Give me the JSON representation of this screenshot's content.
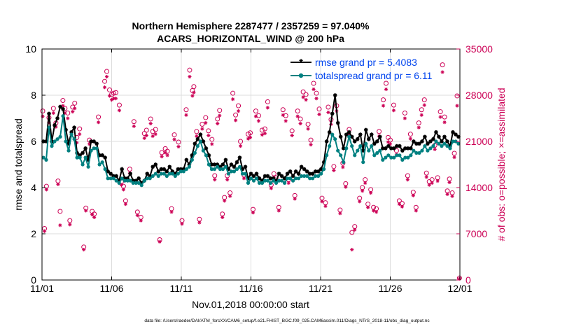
{
  "chart_data": {
    "type": "line",
    "title": "Northern Hemisphere 2287477 / 2357259 = 97.040%",
    "subtitle": "ACARS_HORIZONTAL_WIND @ 200 hPa",
    "xlabel": "Nov.01,2018 00:00:00 start",
    "ylabel_left": "rmse and totalspread",
    "ylabel_right": "# of obs: o=possible; ×=assimilated",
    "footer": "data file: /Users/raeder/DAI/ATM_forcXX/CAM6_setup/f.e21.FHIST_BGC.f09_025.CAM6assim.011/Diags_NTrS_2018-11/obs_diag_output.nc",
    "xlim": [
      0,
      30
    ],
    "ylim_left": [
      0,
      10
    ],
    "ylim_right": [
      0,
      35000
    ],
    "x_ticks": [
      0,
      5,
      10,
      15,
      20,
      25,
      30
    ],
    "x_tick_labels": [
      "11/01",
      "11/06",
      "11/11",
      "11/16",
      "11/21",
      "11/26",
      "12/01"
    ],
    "y_left_ticks": [
      0,
      2,
      4,
      6,
      8,
      10
    ],
    "y_left_tick_labels": [
      "0",
      "2",
      "4",
      "6",
      "8",
      "10"
    ],
    "y_right_ticks": [
      0,
      7000,
      14000,
      21000,
      28000,
      35000
    ],
    "y_right_tick_labels": [
      "0",
      "7000",
      "14000",
      "21000",
      "28000",
      "35000"
    ],
    "legend_position": "top-right",
    "colors": {
      "rmse": "#000000",
      "spread": "#008080",
      "obs": "#cc0055",
      "legend_text": "#0044ee"
    },
    "series": [
      {
        "name": "rmse grand pr = 5.4083",
        "values": [
          6.0,
          6.0,
          7.2,
          6.0,
          6.7,
          7.0,
          7.5,
          7.4,
          6.5,
          5.9,
          6.4,
          6.6,
          5.5,
          5.4,
          5.5,
          5.7,
          5.2,
          6.0,
          6.0,
          5.9,
          5.4,
          5.4,
          5.3,
          4.7,
          4.6,
          4.5,
          4.5,
          4.3,
          4.8,
          4.4,
          4.4,
          4.6,
          4.3,
          4.3,
          4.4,
          4.2,
          4.3,
          4.6,
          4.5,
          4.9,
          5.0,
          4.7,
          4.8,
          4.8,
          4.7,
          4.9,
          4.7,
          4.6,
          4.8,
          4.8,
          4.8,
          5.2,
          5.0,
          5.4,
          5.9,
          6.1,
          6.3,
          6.0,
          5.7,
          5.4,
          5.0,
          5.0,
          5.0,
          4.9,
          5.0,
          5.2,
          4.8,
          5.0,
          4.9,
          5.1,
          5.3,
          4.8,
          4.9,
          4.4,
          4.6,
          4.5,
          4.6,
          4.4,
          4.3,
          4.5,
          4.5,
          4.4,
          4.4,
          4.3,
          4.6,
          4.5,
          4.4,
          4.6,
          4.7,
          4.5,
          4.7,
          4.6,
          4.9,
          4.8,
          4.7,
          4.6,
          4.6,
          4.7,
          4.7,
          4.8,
          5.1,
          6.0,
          6.4,
          7.2,
          8.0,
          6.8,
          6.2,
          5.7,
          6.3,
          6.4,
          6.2,
          6.0,
          6.1,
          6.3,
          5.6,
          6.5,
          6.1,
          6.3,
          5.9,
          6.0,
          6.2,
          5.7,
          5.7,
          5.8,
          5.7,
          5.7,
          5.8,
          5.8,
          5.6,
          5.7,
          5.7,
          5.7,
          6.0,
          5.9,
          5.9,
          6.0,
          6.2,
          5.9,
          6.0,
          6.1,
          6.4,
          6.2,
          6.0,
          6.2,
          6.0,
          5.8,
          6.4,
          6.3,
          6.2
        ]
      },
      {
        "name": "totalspread grand pr = 6.11",
        "values": [
          5.3,
          5.2,
          6.6,
          5.8,
          6.0,
          6.1,
          6.2,
          7.1,
          6.0,
          5.6,
          6.3,
          6.1,
          5.3,
          5.3,
          5.0,
          5.3,
          4.9,
          5.6,
          5.7,
          5.7,
          5.0,
          5.1,
          4.8,
          4.4,
          4.4,
          4.4,
          4.3,
          4.2,
          4.4,
          4.3,
          4.3,
          4.3,
          4.2,
          4.2,
          4.2,
          4.1,
          4.3,
          4.4,
          4.4,
          4.5,
          4.6,
          4.5,
          4.6,
          4.6,
          4.5,
          4.6,
          4.6,
          4.5,
          4.6,
          4.7,
          4.7,
          4.8,
          4.9,
          5.2,
          5.5,
          5.8,
          6.0,
          5.6,
          5.4,
          5.0,
          4.8,
          4.8,
          4.9,
          4.8,
          4.8,
          4.9,
          4.6,
          4.7,
          4.7,
          4.8,
          4.9,
          4.6,
          4.6,
          4.2,
          4.4,
          4.3,
          4.4,
          4.2,
          4.2,
          4.3,
          4.3,
          4.2,
          4.3,
          4.2,
          4.3,
          4.3,
          4.2,
          4.4,
          4.4,
          4.3,
          4.4,
          4.4,
          4.5,
          4.5,
          4.5,
          4.4,
          4.4,
          4.5,
          4.5,
          4.6,
          4.8,
          5.4,
          5.8,
          6.3,
          6.1,
          5.6,
          5.4,
          5.1,
          5.7,
          6.2,
          5.8,
          5.4,
          5.6,
          5.8,
          5.1,
          5.9,
          5.6,
          5.8,
          5.4,
          5.5,
          5.6,
          5.2,
          5.3,
          5.4,
          5.3,
          5.3,
          5.4,
          5.4,
          5.2,
          5.3,
          5.3,
          5.4,
          5.6,
          5.5,
          5.5,
          5.6,
          5.8,
          5.6,
          5.7,
          5.8,
          6.0,
          5.9,
          5.8,
          5.9,
          5.8,
          5.7,
          6.0,
          6.0,
          5.9
        ]
      }
    ],
    "obs_possible": [
      [
        0.05,
        25600
      ],
      [
        0.18,
        7800
      ],
      [
        0.32,
        14200
      ],
      [
        0.5,
        24600
      ],
      [
        0.82,
        26000
      ],
      [
        1.0,
        23800
      ],
      [
        1.15,
        15000
      ],
      [
        1.3,
        10400
      ],
      [
        1.5,
        27200
      ],
      [
        1.65,
        26000
      ],
      [
        1.85,
        25300
      ],
      [
        2.0,
        9000
      ],
      [
        2.2,
        26200
      ],
      [
        2.35,
        26800
      ],
      [
        2.5,
        21600
      ],
      [
        2.7,
        22900
      ],
      [
        3.0,
        5000
      ],
      [
        3.15,
        10900
      ],
      [
        3.4,
        21200
      ],
      [
        3.6,
        10400
      ],
      [
        3.75,
        10000
      ],
      [
        4.05,
        24700
      ],
      [
        4.5,
        30100
      ],
      [
        4.65,
        31600
      ],
      [
        4.85,
        28800
      ],
      [
        5.0,
        28100
      ],
      [
        5.15,
        28300
      ],
      [
        5.3,
        28400
      ],
      [
        5.55,
        26500
      ],
      [
        5.7,
        14900
      ],
      [
        5.85,
        14200
      ],
      [
        6.0,
        12000
      ],
      [
        6.3,
        16800
      ],
      [
        6.6,
        24000
      ],
      [
        6.85,
        10300
      ],
      [
        7.1,
        9500
      ],
      [
        7.35,
        22200
      ],
      [
        7.5,
        22700
      ],
      [
        7.8,
        24400
      ],
      [
        7.95,
        22500
      ],
      [
        8.15,
        22800
      ],
      [
        8.45,
        6100
      ],
      [
        8.6,
        19300
      ],
      [
        8.85,
        19900
      ],
      [
        9.0,
        19500
      ],
      [
        9.3,
        10800
      ],
      [
        9.5,
        22000
      ],
      [
        9.8,
        20900
      ],
      [
        10.05,
        9000
      ],
      [
        10.35,
        25800
      ],
      [
        10.6,
        31800
      ],
      [
        10.8,
        28700
      ],
      [
        10.9,
        29300
      ],
      [
        11.1,
        22500
      ],
      [
        11.3,
        9200
      ],
      [
        11.5,
        23600
      ],
      [
        11.75,
        24600
      ],
      [
        11.95,
        22600
      ],
      [
        12.2,
        21300
      ],
      [
        12.4,
        15800
      ],
      [
        12.6,
        24400
      ],
      [
        12.75,
        25700
      ],
      [
        12.95,
        10000
      ],
      [
        13.1,
        12500
      ],
      [
        13.3,
        15800
      ],
      [
        13.5,
        13200
      ],
      [
        13.7,
        28300
      ],
      [
        13.9,
        25000
      ],
      [
        14.1,
        26400
      ],
      [
        14.25,
        21000
      ],
      [
        14.5,
        15900
      ],
      [
        14.8,
        22100
      ],
      [
        14.95,
        22300
      ],
      [
        15.15,
        10700
      ],
      [
        15.35,
        25600
      ],
      [
        15.55,
        24900
      ],
      [
        15.8,
        22700
      ],
      [
        16.0,
        22900
      ],
      [
        16.2,
        27000
      ],
      [
        16.45,
        14400
      ],
      [
        16.65,
        16100
      ],
      [
        16.8,
        15500
      ],
      [
        17.0,
        11000
      ],
      [
        17.3,
        25800
      ],
      [
        17.5,
        24900
      ],
      [
        17.7,
        15200
      ],
      [
        17.95,
        22600
      ],
      [
        18.15,
        12800
      ],
      [
        18.35,
        25600
      ],
      [
        18.55,
        24400
      ],
      [
        18.75,
        28500
      ],
      [
        18.95,
        28100
      ],
      [
        19.1,
        23600
      ],
      [
        19.3,
        21200
      ],
      [
        19.5,
        29800
      ],
      [
        19.7,
        28300
      ],
      [
        19.9,
        25900
      ],
      [
        20.1,
        12400
      ],
      [
        20.35,
        11700
      ],
      [
        20.55,
        26200
      ],
      [
        20.75,
        24300
      ],
      [
        20.95,
        17200
      ],
      [
        21.15,
        26400
      ],
      [
        21.4,
        10600
      ],
      [
        21.6,
        17700
      ],
      [
        21.8,
        14600
      ],
      [
        22.05,
        22800
      ],
      [
        22.25,
        7200
      ],
      [
        22.45,
        8100
      ],
      [
        22.8,
        12400
      ],
      [
        23.0,
        14000
      ],
      [
        23.2,
        15200
      ],
      [
        23.4,
        11500
      ],
      [
        23.6,
        13700
      ],
      [
        23.8,
        11000
      ],
      [
        24.0,
        10800
      ],
      [
        24.2,
        22500
      ],
      [
        24.5,
        27300
      ],
      [
        24.7,
        29800
      ],
      [
        24.85,
        21600
      ],
      [
        25.0,
        21200
      ],
      [
        25.25,
        26500
      ],
      [
        25.45,
        19600
      ],
      [
        25.65,
        12000
      ],
      [
        25.85,
        11600
      ],
      [
        26.05,
        25300
      ],
      [
        26.25,
        15800
      ],
      [
        26.45,
        22100
      ],
      [
        26.65,
        13300
      ],
      [
        26.85,
        11000
      ],
      [
        27.05,
        23800
      ],
      [
        27.25,
        25800
      ],
      [
        27.45,
        27300
      ],
      [
        27.6,
        16200
      ],
      [
        27.8,
        14900
      ],
      [
        28.0,
        15200
      ],
      [
        28.2,
        20400
      ],
      [
        28.4,
        15500
      ],
      [
        28.6,
        25500
      ],
      [
        28.75,
        32600
      ],
      [
        28.9,
        24700
      ],
      [
        29.1,
        13500
      ],
      [
        29.25,
        15300
      ],
      [
        29.45,
        13200
      ],
      [
        29.6,
        19200
      ],
      [
        29.8,
        27900
      ],
      [
        29.97,
        300
      ]
    ],
    "obs_assimilated": [
      [
        0.05,
        24800
      ],
      [
        0.18,
        7400
      ],
      [
        0.32,
        13700
      ],
      [
        0.5,
        23900
      ],
      [
        0.82,
        25300
      ],
      [
        1.0,
        23200
      ],
      [
        1.15,
        14500
      ],
      [
        1.3,
        8300
      ],
      [
        1.5,
        26400
      ],
      [
        1.65,
        25300
      ],
      [
        1.85,
        24500
      ],
      [
        2.0,
        8400
      ],
      [
        2.2,
        25500
      ],
      [
        2.35,
        26000
      ],
      [
        2.5,
        20800
      ],
      [
        2.7,
        22100
      ],
      [
        3.0,
        4600
      ],
      [
        3.15,
        10500
      ],
      [
        3.4,
        20600
      ],
      [
        3.6,
        9900
      ],
      [
        3.75,
        9500
      ],
      [
        4.05,
        23900
      ],
      [
        4.5,
        29200
      ],
      [
        4.65,
        30800
      ],
      [
        4.85,
        27900
      ],
      [
        5.0,
        27300
      ],
      [
        5.15,
        27500
      ],
      [
        5.3,
        27500
      ],
      [
        5.55,
        25700
      ],
      [
        5.7,
        14400
      ],
      [
        5.85,
        13700
      ],
      [
        6.0,
        11500
      ],
      [
        6.3,
        16200
      ],
      [
        6.6,
        23300
      ],
      [
        6.85,
        9800
      ],
      [
        7.1,
        9000
      ],
      [
        7.35,
        21500
      ],
      [
        7.5,
        21900
      ],
      [
        7.8,
        23700
      ],
      [
        7.95,
        21800
      ],
      [
        8.15,
        22100
      ],
      [
        8.45,
        5800
      ],
      [
        8.6,
        18700
      ],
      [
        8.85,
        19300
      ],
      [
        9.0,
        18900
      ],
      [
        9.3,
        10300
      ],
      [
        9.5,
        21300
      ],
      [
        9.8,
        20200
      ],
      [
        10.05,
        8500
      ],
      [
        10.35,
        25000
      ],
      [
        10.6,
        30800
      ],
      [
        10.8,
        27900
      ],
      [
        10.9,
        28400
      ],
      [
        11.1,
        21800
      ],
      [
        11.3,
        8700
      ],
      [
        11.5,
        22900
      ],
      [
        11.75,
        23800
      ],
      [
        11.95,
        21900
      ],
      [
        12.2,
        20600
      ],
      [
        12.4,
        15200
      ],
      [
        12.6,
        23700
      ],
      [
        12.75,
        24900
      ],
      [
        12.95,
        9500
      ],
      [
        13.1,
        12000
      ],
      [
        13.3,
        15200
      ],
      [
        13.5,
        12700
      ],
      [
        13.7,
        27400
      ],
      [
        13.9,
        24200
      ],
      [
        14.1,
        25600
      ],
      [
        14.25,
        20300
      ],
      [
        14.5,
        15400
      ],
      [
        14.8,
        21400
      ],
      [
        14.95,
        21600
      ],
      [
        15.15,
        10200
      ],
      [
        15.35,
        24800
      ],
      [
        15.55,
        24100
      ],
      [
        15.8,
        22000
      ],
      [
        16.0,
        22200
      ],
      [
        16.2,
        26100
      ],
      [
        16.45,
        13900
      ],
      [
        16.65,
        15500
      ],
      [
        16.8,
        15000
      ],
      [
        17.0,
        10500
      ],
      [
        17.3,
        25000
      ],
      [
        17.5,
        24100
      ],
      [
        17.7,
        14700
      ],
      [
        17.95,
        21900
      ],
      [
        18.15,
        12300
      ],
      [
        18.35,
        24800
      ],
      [
        18.55,
        23700
      ],
      [
        18.75,
        27700
      ],
      [
        18.95,
        27300
      ],
      [
        19.1,
        22900
      ],
      [
        19.3,
        20500
      ],
      [
        19.5,
        28900
      ],
      [
        19.7,
        27500
      ],
      [
        19.9,
        25100
      ],
      [
        20.1,
        11900
      ],
      [
        20.35,
        11200
      ],
      [
        20.55,
        25400
      ],
      [
        20.75,
        23600
      ],
      [
        20.95,
        16600
      ],
      [
        21.15,
        25600
      ],
      [
        21.4,
        10100
      ],
      [
        21.6,
        17100
      ],
      [
        21.8,
        14100
      ],
      [
        22.05,
        22100
      ],
      [
        22.25,
        4600
      ],
      [
        22.45,
        7600
      ],
      [
        22.8,
        11900
      ],
      [
        23.0,
        13500
      ],
      [
        23.2,
        14700
      ],
      [
        23.4,
        11000
      ],
      [
        23.6,
        13200
      ],
      [
        23.8,
        10500
      ],
      [
        24.0,
        10300
      ],
      [
        24.2,
        21800
      ],
      [
        24.5,
        26400
      ],
      [
        24.7,
        28900
      ],
      [
        24.85,
        20900
      ],
      [
        25.0,
        20600
      ],
      [
        25.25,
        25700
      ],
      [
        25.45,
        19000
      ],
      [
        25.65,
        11500
      ],
      [
        25.85,
        11100
      ],
      [
        26.05,
        24500
      ],
      [
        26.25,
        15200
      ],
      [
        26.45,
        21400
      ],
      [
        26.65,
        12800
      ],
      [
        26.85,
        10500
      ],
      [
        27.05,
        23100
      ],
      [
        27.25,
        25000
      ],
      [
        27.45,
        26500
      ],
      [
        27.6,
        15600
      ],
      [
        27.8,
        14400
      ],
      [
        28.0,
        14700
      ],
      [
        28.2,
        19800
      ],
      [
        28.4,
        15000
      ],
      [
        28.6,
        24700
      ],
      [
        28.75,
        31500
      ],
      [
        28.9,
        23900
      ],
      [
        29.1,
        13000
      ],
      [
        29.25,
        14800
      ],
      [
        29.45,
        12700
      ],
      [
        29.6,
        18600
      ],
      [
        29.8,
        26400
      ],
      [
        29.97,
        200
      ]
    ]
  }
}
